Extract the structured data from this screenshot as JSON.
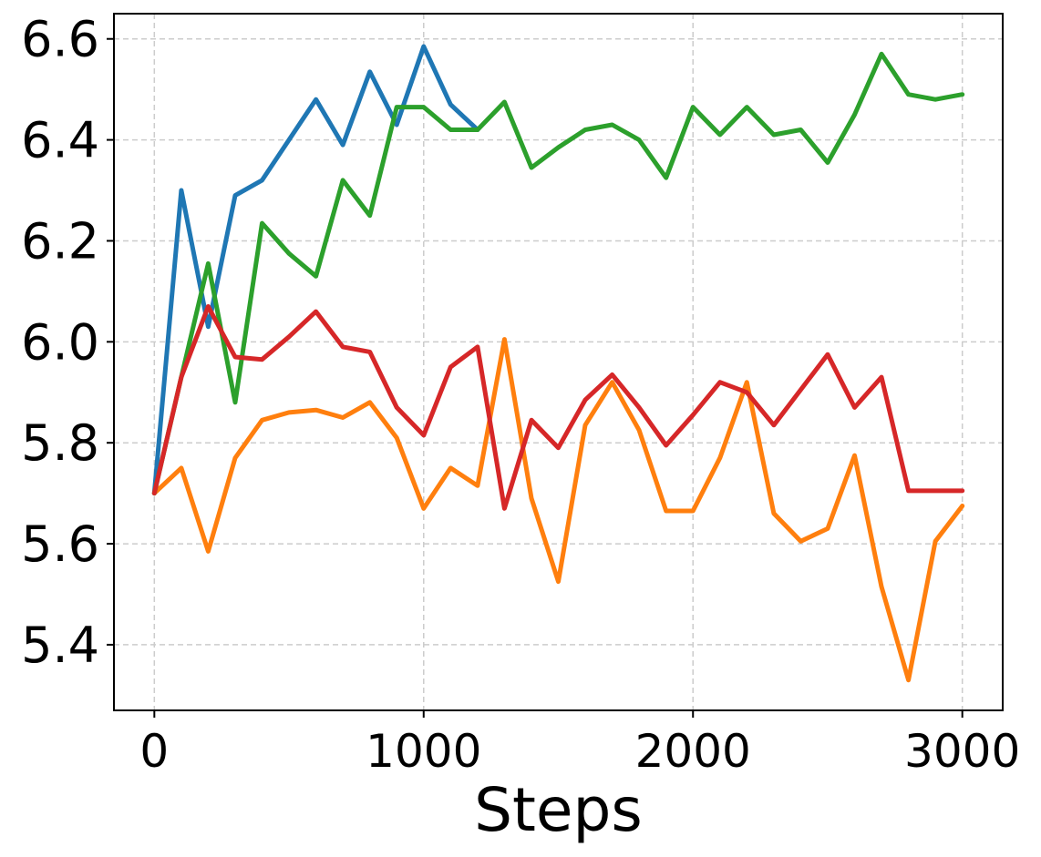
{
  "chart_data": {
    "type": "line",
    "title": "",
    "xlabel": "Steps",
    "ylabel": "",
    "xlim": [
      -150,
      3150
    ],
    "ylim": [
      5.27,
      6.65
    ],
    "xticks": [
      0,
      1000,
      2000,
      3000
    ],
    "xtick_labels": [
      "0",
      "1000",
      "2000",
      "3000"
    ],
    "yticks": [
      5.4,
      5.6,
      5.8,
      6.0,
      6.2,
      6.4,
      6.6
    ],
    "ytick_labels": [
      "5.4",
      "5.6",
      "5.8",
      "6.0",
      "6.2",
      "6.4",
      "6.6"
    ],
    "grid": true,
    "legend": false,
    "series": [
      {
        "color": "#1f77b4",
        "x": [
          0,
          100,
          200,
          300,
          400,
          500,
          600,
          700,
          800,
          900,
          1000,
          1100,
          1200
        ],
        "values": [
          5.7,
          6.3,
          6.03,
          6.29,
          6.32,
          6.4,
          6.48,
          6.39,
          6.535,
          6.43,
          6.585,
          6.47,
          6.42
        ]
      },
      {
        "color": "#ff7f0e",
        "x": [
          0,
          100,
          200,
          300,
          400,
          500,
          600,
          700,
          800,
          900,
          1000,
          1100,
          1200,
          1300,
          1400,
          1500,
          1600,
          1700,
          1800,
          1900,
          2000,
          2100,
          2200,
          2300,
          2400,
          2500,
          2600,
          2700,
          2800,
          2900,
          3000
        ],
        "values": [
          5.7,
          5.75,
          5.585,
          5.77,
          5.845,
          5.86,
          5.865,
          5.85,
          5.88,
          5.81,
          5.67,
          5.75,
          5.715,
          6.005,
          5.69,
          5.525,
          5.835,
          5.92,
          5.825,
          5.665,
          5.665,
          5.77,
          5.92,
          5.66,
          5.605,
          5.63,
          5.775,
          5.515,
          5.33,
          5.605,
          5.675
        ]
      },
      {
        "color": "#2ca02c",
        "x": [
          0,
          100,
          200,
          300,
          400,
          500,
          600,
          700,
          800,
          900,
          1000,
          1100,
          1200,
          1300,
          1400,
          1500,
          1600,
          1700,
          1800,
          1900,
          2000,
          2100,
          2200,
          2300,
          2400,
          2500,
          2600,
          2700,
          2800,
          2900,
          3000
        ],
        "values": [
          5.7,
          5.93,
          6.155,
          5.88,
          6.235,
          6.175,
          6.13,
          6.32,
          6.25,
          6.465,
          6.465,
          6.42,
          6.42,
          6.475,
          6.345,
          6.385,
          6.42,
          6.43,
          6.4,
          6.325,
          6.465,
          6.41,
          6.465,
          6.41,
          6.42,
          6.355,
          6.45,
          6.57,
          6.49,
          6.48,
          6.49
        ]
      },
      {
        "color": "#d62728",
        "x": [
          0,
          100,
          200,
          300,
          400,
          500,
          600,
          700,
          800,
          900,
          1000,
          1100,
          1200,
          1300,
          1400,
          1500,
          1600,
          1700,
          1800,
          1900,
          2000,
          2100,
          2200,
          2300,
          2400,
          2500,
          2600,
          2700,
          2800,
          2900,
          3000
        ],
        "values": [
          5.7,
          5.93,
          6.07,
          5.97,
          5.965,
          6.01,
          6.06,
          5.99,
          5.98,
          5.87,
          5.815,
          5.95,
          5.99,
          5.67,
          5.845,
          5.79,
          5.885,
          5.935,
          5.87,
          5.795,
          5.855,
          5.92,
          5.9,
          5.835,
          5.905,
          5.975,
          5.87,
          5.93,
          5.705,
          5.705,
          5.705
        ]
      }
    ]
  }
}
